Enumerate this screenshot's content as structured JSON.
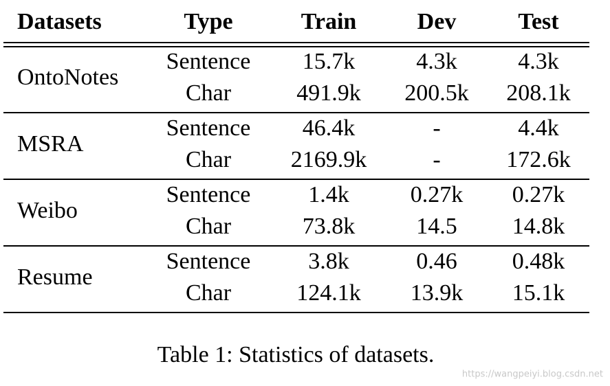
{
  "table": {
    "header": [
      "Datasets",
      "Type",
      "Train",
      "Dev",
      "Test"
    ],
    "groups": [
      {
        "dataset": "OntoNotes",
        "rows": [
          [
            "Sentence",
            "15.7k",
            "4.3k",
            "4.3k"
          ],
          [
            "Char",
            "491.9k",
            "200.5k",
            "208.1k"
          ]
        ]
      },
      {
        "dataset": "MSRA",
        "rows": [
          [
            "Sentence",
            "46.4k",
            "-",
            "4.4k"
          ],
          [
            "Char",
            "2169.9k",
            "-",
            "172.6k"
          ]
        ]
      },
      {
        "dataset": "Weibo",
        "rows": [
          [
            "Sentence",
            "1.4k",
            "0.27k",
            "0.27k"
          ],
          [
            "Char",
            "73.8k",
            "14.5",
            "14.8k"
          ]
        ]
      },
      {
        "dataset": "Resume",
        "rows": [
          [
            "Sentence",
            "3.8k",
            "0.46",
            "0.48k"
          ],
          [
            "Char",
            "124.1k",
            "13.9k",
            "15.1k"
          ]
        ]
      }
    ]
  },
  "caption": "Table 1: Statistics of datasets.",
  "watermark": "https://wangpeiyi.blog.csdn.net"
}
